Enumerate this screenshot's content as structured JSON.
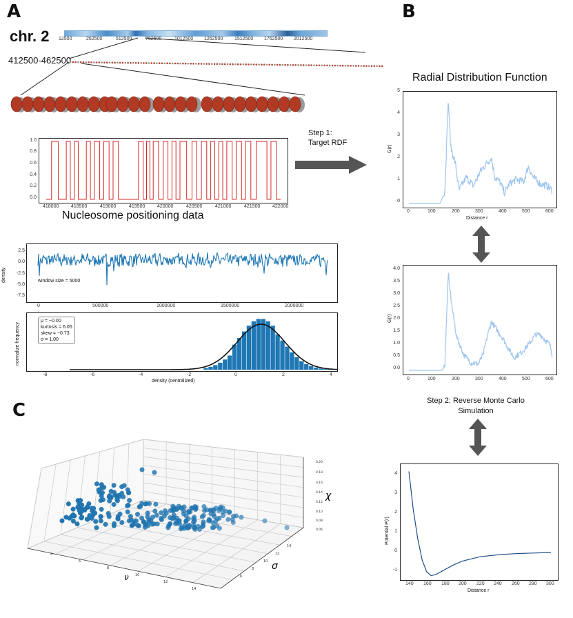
{
  "panels": {
    "a": "A",
    "b": "B",
    "c": "C"
  },
  "chrom": {
    "label": "chr. 2",
    "ticks": [
      "12500",
      "262500",
      "512500",
      "762500",
      "1012500",
      "1262500",
      "1512500",
      "1762500",
      "2012500"
    ],
    "region": "412500-462500"
  },
  "positioning": {
    "caption": "Nucleosome positioning data",
    "yticks": [
      "0.0",
      "0.2",
      "0.4",
      "0.6",
      "0.8",
      "1.0"
    ],
    "xticks": [
      "418000",
      "418500",
      "419000",
      "419500",
      "420000",
      "420500",
      "421000",
      "421500",
      "422000"
    ]
  },
  "density_plot": {
    "ylabel": "density",
    "annotation": "window size = 5000",
    "yticks": [
      "2.5",
      "0.0",
      "-2.5",
      "-5.0",
      "-7.5"
    ],
    "xticks": [
      "0",
      "500000",
      "1000000",
      "1500000",
      "2000000"
    ]
  },
  "histogram": {
    "ylabel": "normalize frequency",
    "xlabel": "density (centralized)",
    "xticks": [
      "-8",
      "-6",
      "-4",
      "-2",
      "0",
      "2",
      "4"
    ],
    "stats": [
      "μ = −0.00",
      "kurtosis = 6.05",
      "skew = −0.73",
      "σ = 1.00"
    ]
  },
  "step1": {
    "line1": "Step 1:",
    "line2": "Target RDF"
  },
  "rdf_title": "Radial Distribution Function",
  "rdf_target": {
    "ylabel": "G(r)",
    "xlabel": "Distance r",
    "yticks": [
      "0",
      "1",
      "2",
      "3",
      "4",
      "5"
    ],
    "xticks": [
      "0",
      "100",
      "200",
      "300",
      "400",
      "500",
      "600"
    ]
  },
  "rdf_sim": {
    "ylabel": "G(r)",
    "xlabel": "Distance r",
    "yticks": [
      "0.0",
      "0.5",
      "1.0",
      "1.5",
      "2.0",
      "2.5",
      "3.0",
      "3.5",
      "4.0"
    ],
    "xticks": [
      "0",
      "100",
      "200",
      "300",
      "400",
      "500",
      "600"
    ]
  },
  "step2": {
    "line1": "Step 2: Reverse Monte Carlo",
    "line2": "Simulation"
  },
  "potential": {
    "ylabel": "Potential P(r)",
    "xlabel": "Distance r",
    "yticks": [
      "4",
      "3",
      "2",
      "1",
      "0",
      "-1"
    ],
    "xticks": [
      "140",
      "160",
      "180",
      "200",
      "220",
      "240",
      "260",
      "280",
      "300"
    ]
  },
  "scatter3d": {
    "x_label": "ν",
    "y_label": "σ",
    "z_label": "χ",
    "xticks": [
      "4",
      "6",
      "8",
      "10",
      "12",
      "14"
    ],
    "yticks": [
      "6",
      "8",
      "10",
      "12",
      "14"
    ],
    "zticks": [
      "0.06",
      "0.08",
      "0.10",
      "0.12",
      "0.14",
      "0.16",
      "0.18",
      "0.20"
    ]
  },
  "colors": {
    "steel": "#1f77b4",
    "red": "#d62728",
    "light_blue": "#9ec5ef",
    "arrow": "#555555"
  },
  "chart_data": [
    {
      "type": "line",
      "title": "",
      "xlabel": "",
      "ylabel": "",
      "xlim": [
        418000,
        422000
      ],
      "ylim": [
        0,
        1
      ],
      "series": [
        {
          "values": [
            0,
            1,
            0,
            1,
            0,
            1,
            0,
            1,
            0,
            1,
            0,
            1,
            0,
            1,
            0,
            1,
            0,
            1,
            0
          ]
        }
      ]
    },
    {
      "type": "line",
      "xlabel": "",
      "ylabel": "density",
      "xlim": [
        0,
        2250000
      ],
      "ylim": [
        -8,
        3
      ],
      "series": [
        {
          "values": [
            0.5,
            -0.3,
            -7.0,
            0.2,
            0.4
          ]
        }
      ]
    },
    {
      "type": "bar",
      "xlabel": "density (centralized)",
      "ylabel": "normalize frequency",
      "xlim": [
        -8,
        4
      ]
    },
    {
      "type": "line",
      "title": "Radial Distribution Function",
      "xlabel": "Distance r",
      "ylabel": "G(r)",
      "xlim": [
        0,
        600
      ],
      "ylim": [
        0,
        5
      ],
      "series": [
        {
          "x": [
            0,
            130,
            150,
            165,
            175,
            195,
            210,
            240,
            270,
            300,
            330,
            345,
            360,
            380,
            400,
            420,
            450,
            480,
            500,
            520,
            550,
            580,
            600
          ],
          "values": [
            0,
            0,
            0.5,
            4.8,
            2.6,
            1.8,
            0.6,
            1.2,
            0.8,
            1.5,
            1.9,
            2.1,
            1.2,
            1.0,
            0.5,
            0.9,
            1.1,
            1.0,
            1.7,
            1.2,
            0.9,
            0.8,
            0.6
          ]
        }
      ]
    },
    {
      "type": "line",
      "xlabel": "Distance r",
      "ylabel": "G(r)",
      "xlim": [
        0,
        600
      ],
      "ylim": [
        0,
        4
      ],
      "series": [
        {
          "x": [
            0,
            140,
            150,
            165,
            180,
            200,
            230,
            260,
            290,
            310,
            330,
            345,
            360,
            390,
            420,
            440,
            470,
            500,
            530,
            550,
            570,
            590,
            600
          ],
          "values": [
            0,
            0,
            0.2,
            3.8,
            2.5,
            1.3,
            0.6,
            0.3,
            0.25,
            0.6,
            1.4,
            1.9,
            1.7,
            1.3,
            0.8,
            0.5,
            0.7,
            1.0,
            1.4,
            1.4,
            1.2,
            1.0,
            0.6
          ]
        }
      ]
    },
    {
      "type": "line",
      "xlabel": "Distance r",
      "ylabel": "Potential P(r)",
      "xlim": [
        135,
        302
      ],
      "ylim": [
        -1.4,
        4.4
      ],
      "series": [
        {
          "x": [
            140,
            145,
            150,
            155,
            160,
            165,
            170,
            180,
            190,
            200,
            220,
            240,
            260,
            280,
            300
          ],
          "values": [
            4.2,
            2.2,
            0.7,
            -0.4,
            -1.0,
            -1.2,
            -1.15,
            -0.9,
            -0.65,
            -0.45,
            -0.22,
            -0.12,
            -0.06,
            -0.03,
            0.0
          ]
        }
      ]
    },
    {
      "type": "scatter",
      "xlabel": "ν",
      "ylabel": "σ",
      "zlabel": "χ"
    }
  ]
}
